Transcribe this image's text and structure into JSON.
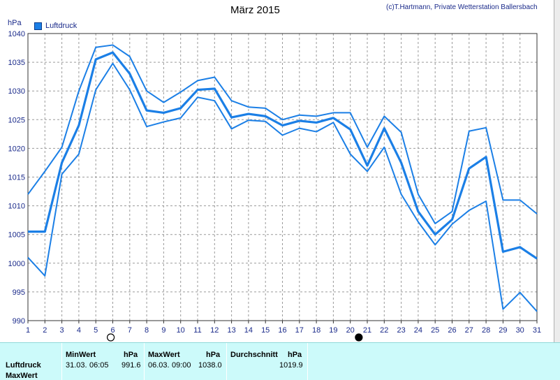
{
  "header": {
    "title": "März 2015",
    "copyright": "(c)T.Hartmann, Private Wetterstation Ballersbach",
    "unit": "hPa",
    "legend_label": "Luftdruck"
  },
  "colors": {
    "series": "#1b7fe6",
    "grid": "#9a9a9a",
    "axis_text": "#1a2a8a"
  },
  "icons": {
    "full_moon": "full-moon-icon",
    "new_moon": "new-moon-icon"
  },
  "chart_data": {
    "type": "line",
    "title": "März 2015",
    "ylabel": "hPa",
    "xlim": [
      1,
      31
    ],
    "ylim": [
      990,
      1040
    ],
    "yticks": [
      990,
      995,
      1000,
      1005,
      1010,
      1015,
      1020,
      1025,
      1030,
      1035,
      1040
    ],
    "x": [
      1,
      2,
      3,
      4,
      5,
      6,
      7,
      8,
      9,
      10,
      11,
      12,
      13,
      14,
      15,
      16,
      17,
      18,
      19,
      20,
      21,
      22,
      23,
      24,
      25,
      26,
      27,
      28,
      29,
      30,
      31
    ],
    "grid": true,
    "legend": "top-left",
    "series": [
      {
        "name": "Luftdruck",
        "values": [
          1005.5,
          1005.5,
          1017.5,
          1024,
          1035.5,
          1036.7,
          1033,
          1026.6,
          1026.2,
          1027,
          1030.2,
          1030.4,
          1025.4,
          1026,
          1025.6,
          1024,
          1024.8,
          1024.5,
          1025.3,
          1023.3,
          1017,
          1023.5,
          1017.5,
          1009,
          1005,
          1007.6,
          1016.5,
          1018.5,
          1002,
          1002.8,
          1000.8
        ]
      },
      {
        "role": "max",
        "values": [
          1012,
          1016,
          1020.2,
          1030,
          1037.6,
          1038,
          1036,
          1030,
          1028,
          1029.8,
          1031.8,
          1032.4,
          1028.3,
          1027.2,
          1027,
          1025,
          1025.8,
          1025.6,
          1026.2,
          1026.2,
          1020.2,
          1025.6,
          1022.8,
          1012,
          1006.9,
          1009,
          1023,
          1023.6,
          1011,
          1011,
          1008.6
        ]
      },
      {
        "role": "min",
        "values": [
          1001,
          997.8,
          1015.5,
          1019,
          1030.2,
          1034.8,
          1030.2,
          1023.8,
          1024.6,
          1025.3,
          1028.9,
          1028.3,
          1023.4,
          1024.9,
          1024.7,
          1022.3,
          1023.5,
          1022.9,
          1024.5,
          1019,
          1016,
          1020.2,
          1012,
          1007.2,
          1003.2,
          1006.8,
          1009.2,
          1010.8,
          992,
          994.9,
          991.6
        ]
      }
    ],
    "markers": [
      {
        "x": 5.88,
        "type": "full-moon"
      },
      {
        "x": 20.5,
        "type": "new-moon"
      }
    ]
  },
  "stats": {
    "row_labels": [
      "Luftdruck",
      "MaxWert"
    ],
    "min_header": "MinWert",
    "min_unit": "hPa",
    "min_date": "31.03.",
    "min_time": "06:05",
    "min_value": "991.6",
    "max_header": "MaxWert",
    "max_unit": "hPa",
    "max_date": "06.03.",
    "max_time": "09:00",
    "max_value": "1038.0",
    "avg_header": "Durchschnitt",
    "avg_unit": "hPa",
    "avg_value": "1019.9"
  }
}
